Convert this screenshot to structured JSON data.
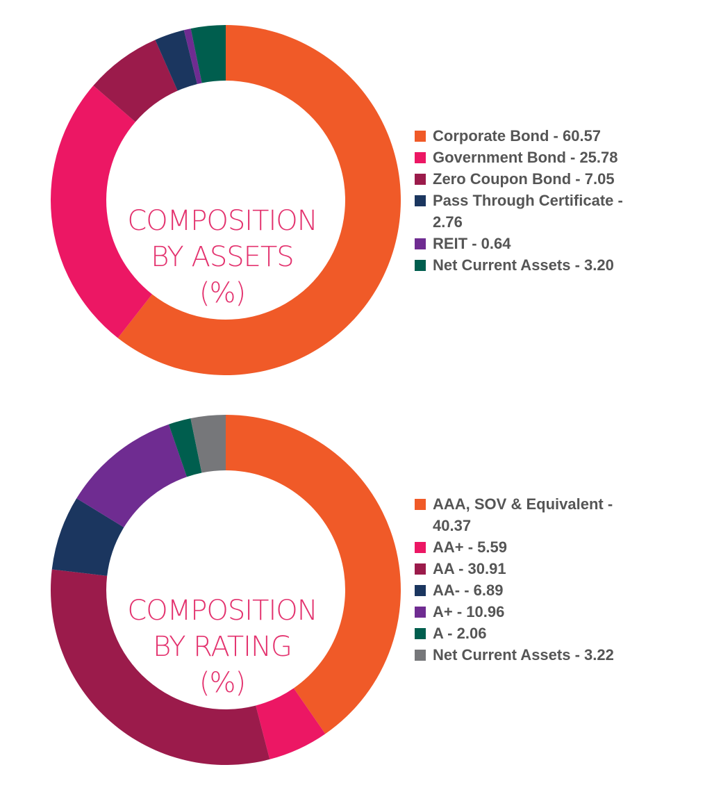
{
  "chart_data": [
    {
      "type": "pie",
      "donut": true,
      "title": [
        "COMPOSITION",
        "BY ASSETS",
        "(%)"
      ],
      "legend_position": "right",
      "slices": [
        {
          "label": "Corporate Bond - 60.57",
          "name": "Corporate Bond",
          "value": 60.57,
          "color": "#F05A28"
        },
        {
          "label": "Government Bond - 25.78",
          "name": "Government Bond",
          "value": 25.78,
          "color": "#EC1764"
        },
        {
          "label": "Zero Coupon Bond - 7.05",
          "name": "Zero Coupon Bond",
          "value": 7.05,
          "color": "#9B1B4B"
        },
        {
          "label": "Pass Through Certificate - 2.76",
          "name": "Pass Through Certificate",
          "value": 2.76,
          "color": "#1B365F"
        },
        {
          "label": "REIT - 0.64",
          "name": "REIT",
          "value": 0.64,
          "color": "#6F2C91"
        },
        {
          "label": "Net Current Assets - 3.20",
          "name": "Net Current Assets",
          "value": 3.2,
          "color": "#005E4E"
        }
      ]
    },
    {
      "type": "pie",
      "donut": true,
      "title": [
        "COMPOSITION",
        "BY RATING",
        "(%)"
      ],
      "legend_position": "right",
      "slices": [
        {
          "label": "AAA, SOV & Equivalent - 40.37",
          "name": "AAA, SOV & Equivalent",
          "value": 40.37,
          "color": "#F05A28"
        },
        {
          "label": "AA+ - 5.59",
          "name": "AA+",
          "value": 5.59,
          "color": "#EC1764"
        },
        {
          "label": "AA - 30.91",
          "name": "AA",
          "value": 30.91,
          "color": "#9B1B4B"
        },
        {
          "label": "AA- - 6.89",
          "name": "AA-",
          "value": 6.89,
          "color": "#1B365F"
        },
        {
          "label": "A+ - 10.96",
          "name": "A+",
          "value": 10.96,
          "color": "#6F2C91"
        },
        {
          "label": "A - 2.06",
          "name": "A",
          "value": 2.06,
          "color": "#005E4E"
        },
        {
          "label": "Net Current Assets - 3.22",
          "name": "Net Current Assets",
          "value": 3.22,
          "color": "#76777A"
        }
      ]
    }
  ]
}
